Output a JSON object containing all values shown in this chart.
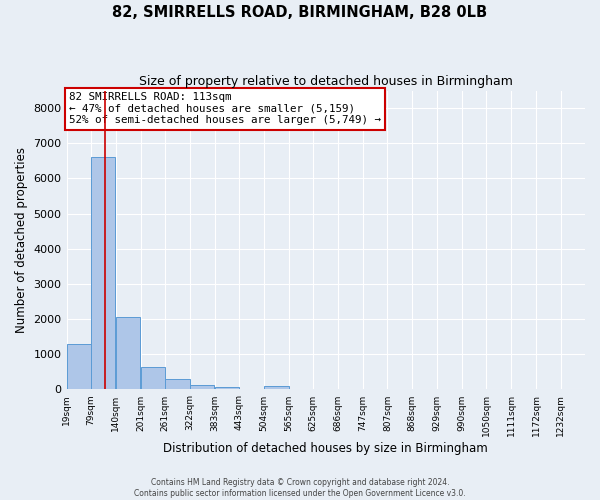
{
  "title": "82, SMIRRELLS ROAD, BIRMINGHAM, B28 0LB",
  "subtitle": "Size of property relative to detached houses in Birmingham",
  "xlabel": "Distribution of detached houses by size in Birmingham",
  "ylabel": "Number of detached properties",
  "bin_labels": [
    "19sqm",
    "79sqm",
    "140sqm",
    "201sqm",
    "261sqm",
    "322sqm",
    "383sqm",
    "443sqm",
    "504sqm",
    "565sqm",
    "625sqm",
    "686sqm",
    "747sqm",
    "807sqm",
    "868sqm",
    "929sqm",
    "990sqm",
    "1050sqm",
    "1111sqm",
    "1172sqm",
    "1232sqm"
  ],
  "bin_edges": [
    19,
    79,
    140,
    201,
    261,
    322,
    383,
    443,
    504,
    565,
    625,
    686,
    747,
    807,
    868,
    929,
    990,
    1050,
    1111,
    1172,
    1232
  ],
  "bar_heights": [
    1300,
    6600,
    2070,
    650,
    290,
    130,
    80,
    0,
    110,
    0,
    0,
    0,
    0,
    0,
    0,
    0,
    0,
    0,
    0,
    0
  ],
  "bar_color": "#aec6e8",
  "bar_edge_color": "#5b9bd5",
  "property_line_x": 113,
  "annotation_title": "82 SMIRRELLS ROAD: 113sqm",
  "annotation_line1": "← 47% of detached houses are smaller (5,159)",
  "annotation_line2": "52% of semi-detached houses are larger (5,749) →",
  "annotation_box_color": "#ffffff",
  "annotation_box_edge_color": "#cc0000",
  "red_line_color": "#cc0000",
  "ylim": [
    0,
    8500
  ],
  "yticks": [
    0,
    1000,
    2000,
    3000,
    4000,
    5000,
    6000,
    7000,
    8000
  ],
  "background_color": "#e8eef5",
  "grid_color": "#ffffff",
  "footer1": "Contains HM Land Registry data © Crown copyright and database right 2024.",
  "footer2": "Contains public sector information licensed under the Open Government Licence v3.0."
}
